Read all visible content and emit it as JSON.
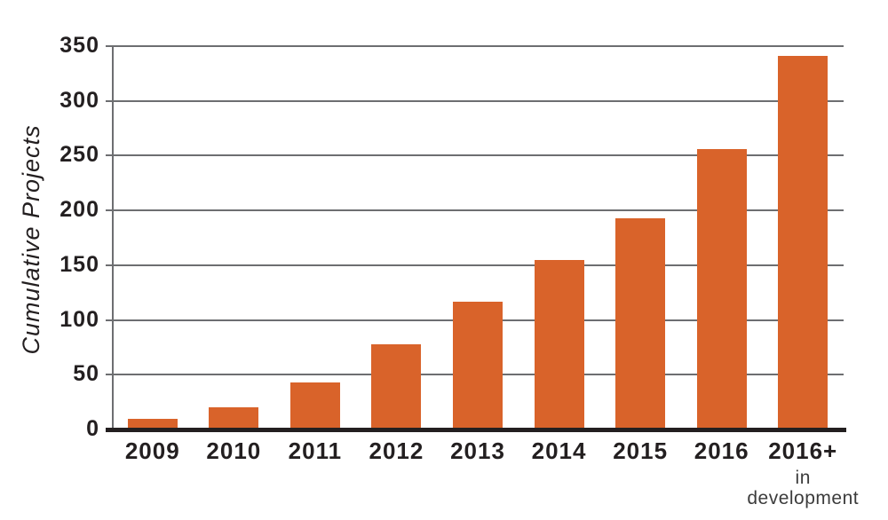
{
  "chart_data": {
    "type": "bar",
    "title": "",
    "xlabel": "",
    "ylabel": "Cumulative Projects",
    "categories": [
      "2009",
      "2010",
      "2011",
      "2012",
      "2013",
      "2014",
      "2015",
      "2016",
      "2016+"
    ],
    "values": [
      10,
      20,
      43,
      78,
      117,
      155,
      193,
      256,
      341
    ],
    "last_category_sublabel_line1": "in",
    "last_category_sublabel_line2": "development",
    "ylim": [
      0,
      350
    ],
    "yticks": [
      0,
      50,
      100,
      150,
      200,
      250,
      300,
      350
    ],
    "grid": "horizontal gridlines, no vertical",
    "legend": "none",
    "bar_color": "#D9632A",
    "gridline_color": "#6d6e71",
    "axis_line_color": "#231f20",
    "text_color": "#231f20"
  }
}
